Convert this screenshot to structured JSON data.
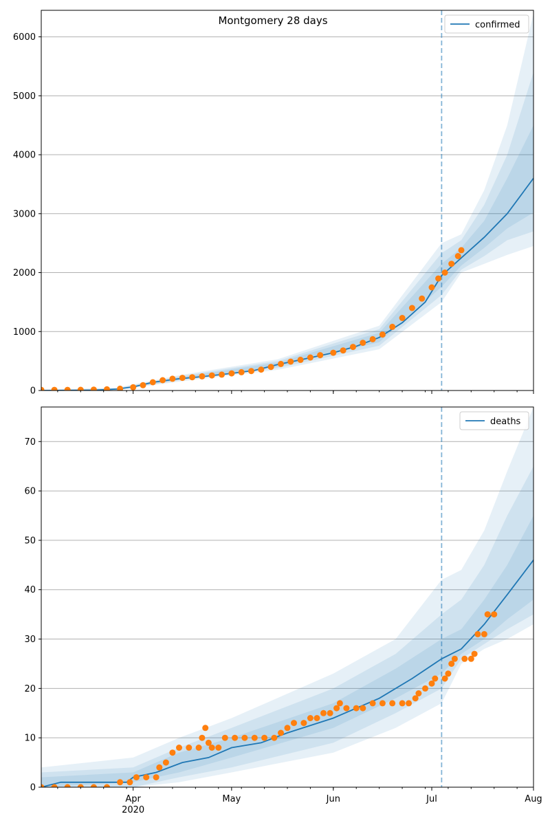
{
  "figure_title": "Montgomery 28 days",
  "colors": {
    "model": "#1f77b4",
    "observed": "#ff7f0e",
    "grid": "#b0b0b0",
    "band": "#1f77b4"
  },
  "x_axis": {
    "start_date": "2020-03-04",
    "end_date": "2020-08-01",
    "major_ticks": [
      {
        "date": "2020-04-01",
        "label": "Apr",
        "sublabel": "2020"
      },
      {
        "date": "2020-05-01",
        "label": "May",
        "sublabel": ""
      },
      {
        "date": "2020-06-01",
        "label": "Jun",
        "sublabel": ""
      },
      {
        "date": "2020-07-01",
        "label": "Jul",
        "sublabel": ""
      },
      {
        "date": "2020-08-01",
        "label": "Aug",
        "sublabel": ""
      }
    ],
    "forecast_start": "2020-07-04"
  },
  "chart_data": [
    {
      "type": "line",
      "legend": "confirmed",
      "legend_position": "top-right",
      "ylim": [
        0,
        6450
      ],
      "yticks": [
        0,
        1000,
        2000,
        3000,
        4000,
        5000,
        6000
      ],
      "grid": "horizontal",
      "model_knots": [
        [
          "2020-03-04",
          0
        ],
        [
          "2020-03-20",
          5
        ],
        [
          "2020-03-27",
          25
        ],
        [
          "2020-04-01",
          60
        ],
        [
          "2020-04-07",
          140
        ],
        [
          "2020-04-15",
          200
        ],
        [
          "2020-04-22",
          235
        ],
        [
          "2020-05-01",
          290
        ],
        [
          "2020-05-08",
          340
        ],
        [
          "2020-05-15",
          440
        ],
        [
          "2020-05-22",
          520
        ],
        [
          "2020-06-01",
          640
        ],
        [
          "2020-06-08",
          750
        ],
        [
          "2020-06-15",
          900
        ],
        [
          "2020-06-22",
          1150
        ],
        [
          "2020-06-29",
          1500
        ],
        [
          "2020-07-04",
          1950
        ],
        [
          "2020-07-10",
          2250
        ],
        [
          "2020-07-17",
          2600
        ],
        [
          "2020-07-24",
          3000
        ],
        [
          "2020-08-01",
          3600
        ]
      ],
      "bands": [
        {
          "opacity": 0.11,
          "knots": [
            [
              "2020-03-04",
              -10,
              15
            ],
            [
              "2020-03-27",
              10,
              45
            ],
            [
              "2020-04-15",
              150,
              260
            ],
            [
              "2020-05-15",
              350,
              530
            ],
            [
              "2020-06-15",
              700,
              1100
            ],
            [
              "2020-07-04",
              1500,
              2500
            ],
            [
              "2020-07-10",
              2000,
              2650
            ],
            [
              "2020-07-17",
              2150,
              3400
            ],
            [
              "2020-07-24",
              2300,
              4500
            ],
            [
              "2020-08-01",
              2450,
              6400
            ]
          ]
        },
        {
          "opacity": 0.11,
          "knots": [
            [
              "2020-03-04",
              -5,
              10
            ],
            [
              "2020-03-27",
              15,
              38
            ],
            [
              "2020-04-15",
              170,
              240
            ],
            [
              "2020-05-15",
              380,
              500
            ],
            [
              "2020-06-15",
              760,
              1040
            ],
            [
              "2020-07-04",
              1620,
              2330
            ],
            [
              "2020-07-10",
              2050,
              2550
            ],
            [
              "2020-07-17",
              2280,
              3150
            ],
            [
              "2020-07-24",
              2550,
              4000
            ],
            [
              "2020-08-01",
              2700,
              5400
            ]
          ]
        },
        {
          "opacity": 0.11,
          "knots": [
            [
              "2020-03-04",
              0,
              6
            ],
            [
              "2020-03-27",
              18,
              32
            ],
            [
              "2020-04-15",
              180,
              222
            ],
            [
              "2020-05-15",
              405,
              475
            ],
            [
              "2020-06-15",
              820,
              980
            ],
            [
              "2020-07-04",
              1760,
              2150
            ],
            [
              "2020-07-10",
              2120,
              2420
            ],
            [
              "2020-07-17",
              2420,
              2880
            ],
            [
              "2020-07-24",
              2750,
              3600
            ],
            [
              "2020-08-01",
              3020,
              4500
            ]
          ]
        }
      ],
      "observed": [
        [
          "2020-03-04",
          10
        ],
        [
          "2020-03-08",
          10
        ],
        [
          "2020-03-12",
          10
        ],
        [
          "2020-03-16",
          12
        ],
        [
          "2020-03-20",
          15
        ],
        [
          "2020-03-24",
          20
        ],
        [
          "2020-03-28",
          30
        ],
        [
          "2020-04-01",
          55
        ],
        [
          "2020-04-04",
          90
        ],
        [
          "2020-04-07",
          140
        ],
        [
          "2020-04-10",
          175
        ],
        [
          "2020-04-13",
          200
        ],
        [
          "2020-04-16",
          215
        ],
        [
          "2020-04-19",
          225
        ],
        [
          "2020-04-22",
          240
        ],
        [
          "2020-04-25",
          255
        ],
        [
          "2020-04-28",
          270
        ],
        [
          "2020-05-01",
          290
        ],
        [
          "2020-05-04",
          310
        ],
        [
          "2020-05-07",
          330
        ],
        [
          "2020-05-10",
          355
        ],
        [
          "2020-05-13",
          400
        ],
        [
          "2020-05-16",
          450
        ],
        [
          "2020-05-19",
          490
        ],
        [
          "2020-05-22",
          520
        ],
        [
          "2020-05-25",
          560
        ],
        [
          "2020-05-28",
          600
        ],
        [
          "2020-06-01",
          640
        ],
        [
          "2020-06-04",
          680
        ],
        [
          "2020-06-07",
          740
        ],
        [
          "2020-06-10",
          810
        ],
        [
          "2020-06-13",
          870
        ],
        [
          "2020-06-16",
          950
        ],
        [
          "2020-06-19",
          1080
        ],
        [
          "2020-06-22",
          1230
        ],
        [
          "2020-06-25",
          1400
        ],
        [
          "2020-06-28",
          1560
        ],
        [
          "2020-07-01",
          1750
        ],
        [
          "2020-07-03",
          1900
        ],
        [
          "2020-07-05",
          2000
        ],
        [
          "2020-07-07",
          2150
        ],
        [
          "2020-07-09",
          2280
        ],
        [
          "2020-07-10",
          2380
        ]
      ]
    },
    {
      "type": "line",
      "legend": "deaths",
      "legend_position": "top-right",
      "ylim": [
        0,
        77
      ],
      "yticks": [
        0,
        10,
        20,
        30,
        40,
        50,
        60,
        70
      ],
      "grid": "horizontal",
      "model_knots": [
        [
          "2020-03-04",
          0
        ],
        [
          "2020-03-10",
          1
        ],
        [
          "2020-03-30",
          1
        ],
        [
          "2020-04-01",
          2
        ],
        [
          "2020-04-08",
          3
        ],
        [
          "2020-04-16",
          5
        ],
        [
          "2020-04-24",
          6
        ],
        [
          "2020-05-01",
          8
        ],
        [
          "2020-05-10",
          9
        ],
        [
          "2020-05-18",
          11
        ],
        [
          "2020-06-01",
          14
        ],
        [
          "2020-06-15",
          18
        ],
        [
          "2020-06-25",
          22
        ],
        [
          "2020-07-04",
          26
        ],
        [
          "2020-07-10",
          28
        ],
        [
          "2020-07-17",
          33
        ],
        [
          "2020-07-24",
          39
        ],
        [
          "2020-08-01",
          46
        ]
      ],
      "bands": [
        {
          "opacity": 0.11,
          "knots": [
            [
              "2020-03-04",
              0,
              4
            ],
            [
              "2020-04-01",
              0,
              6
            ],
            [
              "2020-04-15",
              1,
              10
            ],
            [
              "2020-05-01",
              3,
              14
            ],
            [
              "2020-06-01",
              7,
              23
            ],
            [
              "2020-06-20",
              12,
              30
            ],
            [
              "2020-07-04",
              17,
              42
            ],
            [
              "2020-07-10",
              25,
              44
            ],
            [
              "2020-07-17",
              28,
              52
            ],
            [
              "2020-07-24",
              30,
              64
            ],
            [
              "2020-08-01",
              33,
              77
            ]
          ]
        },
        {
          "opacity": 0.11,
          "knots": [
            [
              "2020-03-04",
              0,
              3
            ],
            [
              "2020-04-01",
              0,
              4
            ],
            [
              "2020-04-15",
              2,
              8
            ],
            [
              "2020-05-01",
              4,
              12
            ],
            [
              "2020-06-01",
              9,
              20
            ],
            [
              "2020-06-20",
              15,
              27
            ],
            [
              "2020-07-04",
              20,
              35
            ],
            [
              "2020-07-10",
              26,
              38
            ],
            [
              "2020-07-17",
              29,
              45
            ],
            [
              "2020-07-24",
              32,
              55
            ],
            [
              "2020-08-01",
              35,
              65
            ]
          ]
        },
        {
          "opacity": 0.11,
          "knots": [
            [
              "2020-03-04",
              0,
              2
            ],
            [
              "2020-04-01",
              1,
              3
            ],
            [
              "2020-04-15",
              3,
              7
            ],
            [
              "2020-05-01",
              6,
              10
            ],
            [
              "2020-06-01",
              12,
              17
            ],
            [
              "2020-06-20",
              18,
              24
            ],
            [
              "2020-07-04",
              23,
              30
            ],
            [
              "2020-07-10",
              27,
              32
            ],
            [
              "2020-07-17",
              30,
              38
            ],
            [
              "2020-07-24",
              34,
              45
            ],
            [
              "2020-08-01",
              38,
              55
            ]
          ]
        }
      ],
      "observed": [
        [
          "2020-03-04",
          0
        ],
        [
          "2020-03-08",
          0
        ],
        [
          "2020-03-12",
          0
        ],
        [
          "2020-03-16",
          0
        ],
        [
          "2020-03-20",
          0
        ],
        [
          "2020-03-24",
          0
        ],
        [
          "2020-03-28",
          1
        ],
        [
          "2020-03-31",
          1
        ],
        [
          "2020-04-02",
          2
        ],
        [
          "2020-04-05",
          2
        ],
        [
          "2020-04-08",
          2
        ],
        [
          "2020-04-09",
          4
        ],
        [
          "2020-04-11",
          5
        ],
        [
          "2020-04-13",
          7
        ],
        [
          "2020-04-15",
          8
        ],
        [
          "2020-04-18",
          8
        ],
        [
          "2020-04-21",
          8
        ],
        [
          "2020-04-22",
          10
        ],
        [
          "2020-04-23",
          12
        ],
        [
          "2020-04-24",
          9
        ],
        [
          "2020-04-25",
          8
        ],
        [
          "2020-04-27",
          8
        ],
        [
          "2020-04-29",
          10
        ],
        [
          "2020-05-02",
          10
        ],
        [
          "2020-05-05",
          10
        ],
        [
          "2020-05-08",
          10
        ],
        [
          "2020-05-11",
          10
        ],
        [
          "2020-05-14",
          10
        ],
        [
          "2020-05-16",
          11
        ],
        [
          "2020-05-18",
          12
        ],
        [
          "2020-05-20",
          13
        ],
        [
          "2020-05-23",
          13
        ],
        [
          "2020-05-25",
          14
        ],
        [
          "2020-05-27",
          14
        ],
        [
          "2020-05-29",
          15
        ],
        [
          "2020-05-31",
          15
        ],
        [
          "2020-06-02",
          16
        ],
        [
          "2020-06-03",
          17
        ],
        [
          "2020-06-05",
          16
        ],
        [
          "2020-06-08",
          16
        ],
        [
          "2020-06-10",
          16
        ],
        [
          "2020-06-13",
          17
        ],
        [
          "2020-06-16",
          17
        ],
        [
          "2020-06-19",
          17
        ],
        [
          "2020-06-22",
          17
        ],
        [
          "2020-06-24",
          17
        ],
        [
          "2020-06-26",
          18
        ],
        [
          "2020-06-27",
          19
        ],
        [
          "2020-06-29",
          20
        ],
        [
          "2020-07-01",
          21
        ],
        [
          "2020-07-02",
          22
        ],
        [
          "2020-07-05",
          22
        ],
        [
          "2020-07-06",
          23
        ],
        [
          "2020-07-07",
          25
        ],
        [
          "2020-07-08",
          26
        ],
        [
          "2020-07-11",
          26
        ],
        [
          "2020-07-13",
          26
        ],
        [
          "2020-07-14",
          27
        ],
        [
          "2020-07-15",
          31
        ],
        [
          "2020-07-17",
          31
        ],
        [
          "2020-07-18",
          35
        ],
        [
          "2020-07-20",
          35
        ]
      ]
    }
  ]
}
